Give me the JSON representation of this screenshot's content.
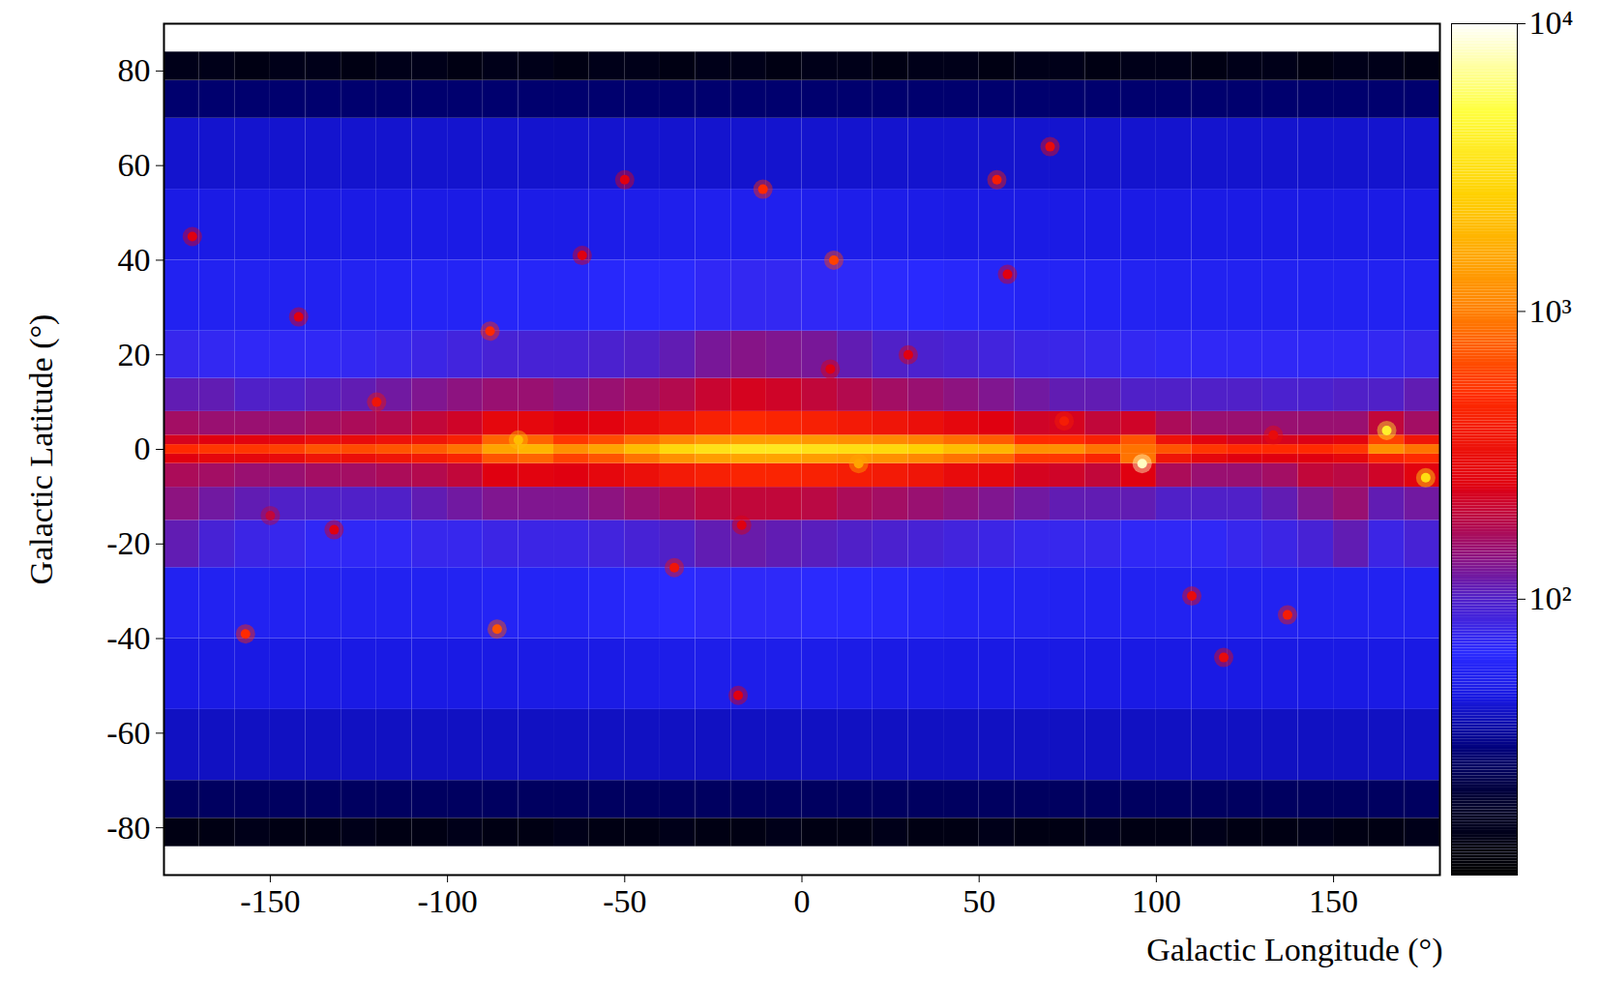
{
  "chart_data": {
    "type": "heatmap",
    "xlabel": "Galactic Longitude (°)",
    "ylabel": "Galactic Latitude (°)",
    "xlim": [
      -180,
      180
    ],
    "ylim": [
      -90,
      90
    ],
    "xticks": [
      -150,
      -100,
      -50,
      0,
      50,
      100,
      150
    ],
    "yticks": [
      -80,
      -60,
      -40,
      -20,
      0,
      20,
      40,
      60,
      80
    ],
    "x_bins": [
      -180,
      -170,
      -160,
      -150,
      -140,
      -130,
      -120,
      -110,
      -100,
      -90,
      -80,
      -70,
      -60,
      -50,
      -40,
      -30,
      -20,
      -10,
      0,
      10,
      20,
      30,
      40,
      50,
      60,
      70,
      80,
      90,
      100,
      110,
      120,
      130,
      140,
      150,
      160,
      170,
      180
    ],
    "y_bins": [
      -90,
      -84,
      -78,
      -70,
      -55,
      -40,
      -25,
      -15,
      -8,
      -3,
      -1,
      1,
      3,
      8,
      15,
      25,
      40,
      55,
      70,
      78,
      84,
      90
    ],
    "values": [
      [
        null,
        null,
        null,
        null,
        null,
        null,
        null,
        null,
        null,
        null,
        null,
        null,
        null,
        null,
        null,
        null,
        null,
        null,
        null,
        null,
        null,
        null,
        null,
        null,
        null,
        null,
        null,
        null,
        null,
        null,
        null,
        null,
        null,
        null,
        null,
        null
      ],
      [
        14,
        14,
        15,
        14,
        14,
        15,
        14,
        14,
        15,
        14,
        14,
        15,
        14,
        14,
        15,
        14,
        14,
        15,
        14,
        14,
        15,
        14,
        14,
        15,
        14,
        14,
        15,
        14,
        14,
        15,
        14,
        14,
        15,
        14,
        14,
        15
      ],
      [
        26,
        26,
        26,
        26,
        26,
        26,
        26,
        26,
        26,
        26,
        26,
        26,
        26,
        26,
        26,
        26,
        26,
        26,
        26,
        26,
        26,
        26,
        26,
        26,
        26,
        26,
        26,
        26,
        26,
        26,
        26,
        26,
        26,
        26,
        26,
        26
      ],
      [
        40,
        40,
        40,
        40,
        40,
        40,
        40,
        40,
        40,
        40,
        40,
        40,
        40,
        40,
        40,
        40,
        40,
        40,
        40,
        40,
        40,
        40,
        40,
        40,
        40,
        40,
        40,
        40,
        40,
        40,
        40,
        40,
        40,
        40,
        40,
        40
      ],
      [
        47,
        47,
        47,
        47,
        47,
        47,
        47,
        47,
        47,
        47,
        48,
        48,
        48,
        49,
        50,
        51,
        51,
        51,
        50,
        49,
        48,
        48,
        47,
        47,
        47,
        47,
        47,
        47,
        47,
        47,
        47,
        47,
        47,
        47,
        47,
        47
      ],
      [
        55,
        55,
        55,
        55,
        55,
        55,
        55,
        55,
        56,
        58,
        58,
        58,
        60,
        62,
        65,
        68,
        68,
        68,
        66,
        64,
        62,
        60,
        58,
        57,
        56,
        55,
        55,
        55,
        55,
        55,
        55,
        55,
        55,
        55,
        55,
        55
      ],
      [
        110,
        90,
        80,
        75,
        70,
        70,
        70,
        75,
        75,
        80,
        80,
        80,
        85,
        90,
        100,
        110,
        115,
        110,
        105,
        100,
        95,
        90,
        85,
        80,
        75,
        75,
        75,
        70,
        70,
        70,
        75,
        80,
        90,
        110,
        80,
        90
      ],
      [
        140,
        120,
        110,
        100,
        100,
        100,
        100,
        110,
        120,
        130,
        130,
        130,
        140,
        150,
        170,
        190,
        200,
        200,
        190,
        170,
        160,
        150,
        140,
        130,
        120,
        110,
        110,
        110,
        100,
        100,
        100,
        110,
        130,
        150,
        110,
        120
      ],
      [
        170,
        160,
        150,
        150,
        160,
        160,
        170,
        180,
        200,
        250,
        260,
        250,
        280,
        320,
        380,
        420,
        450,
        450,
        430,
        400,
        380,
        350,
        300,
        280,
        230,
        220,
        200,
        250,
        170,
        150,
        150,
        160,
        200,
        190,
        220,
        260
      ],
      [
        250,
        280,
        280,
        300,
        350,
        320,
        350,
        380,
        450,
        700,
        800,
        600,
        700,
        900,
        1200,
        1400,
        1500,
        1500,
        1400,
        1300,
        1200,
        1100,
        900,
        800,
        550,
        550,
        450,
        900,
        350,
        280,
        250,
        250,
        250,
        280,
        450,
        500
      ],
      [
        500,
        550,
        550,
        600,
        700,
        650,
        700,
        750,
        900,
        1500,
        1800,
        1200,
        1500,
        2000,
        2800,
        3200,
        3500,
        3500,
        3200,
        3000,
        2800,
        2500,
        2000,
        1800,
        1200,
        1200,
        900,
        900,
        700,
        550,
        500,
        500,
        500,
        550,
        1200,
        900
      ],
      [
        230,
        250,
        260,
        280,
        320,
        300,
        330,
        350,
        420,
        800,
        800,
        550,
        650,
        850,
        1100,
        1300,
        1400,
        1400,
        1300,
        1200,
        1100,
        1000,
        850,
        750,
        500,
        500,
        420,
        700,
        330,
        260,
        230,
        230,
        240,
        260,
        600,
        350
      ],
      [
        160,
        150,
        150,
        150,
        160,
        170,
        180,
        200,
        220,
        280,
        280,
        250,
        260,
        300,
        350,
        420,
        480,
        450,
        420,
        380,
        350,
        320,
        280,
        250,
        220,
        230,
        200,
        220,
        170,
        150,
        150,
        150,
        150,
        150,
        200,
        160
      ],
      [
        110,
        110,
        100,
        100,
        105,
        110,
        120,
        130,
        140,
        150,
        150,
        140,
        150,
        160,
        180,
        210,
        230,
        220,
        200,
        180,
        160,
        150,
        140,
        130,
        120,
        110,
        110,
        100,
        100,
        100,
        100,
        95,
        95,
        100,
        100,
        110
      ],
      [
        75,
        72,
        70,
        70,
        70,
        72,
        75,
        80,
        85,
        90,
        90,
        90,
        95,
        100,
        110,
        125,
        135,
        130,
        125,
        110,
        100,
        95,
        90,
        85,
        80,
        78,
        75,
        72,
        70,
        70,
        70,
        70,
        70,
        70,
        72,
        75
      ],
      [
        55,
        55,
        55,
        55,
        55,
        56,
        57,
        58,
        58,
        60,
        60,
        60,
        62,
        64,
        66,
        70,
        72,
        72,
        70,
        68,
        66,
        64,
        62,
        60,
        58,
        58,
        57,
        56,
        55,
        55,
        55,
        55,
        55,
        55,
        55,
        55
      ],
      [
        48,
        48,
        48,
        48,
        48,
        48,
        48,
        48,
        48,
        48,
        49,
        49,
        50,
        51,
        52,
        53,
        53,
        53,
        52,
        51,
        50,
        49,
        48,
        48,
        48,
        48,
        48,
        48,
        48,
        48,
        48,
        48,
        48,
        48,
        48,
        48
      ],
      [
        42,
        42,
        42,
        42,
        42,
        42,
        42,
        42,
        42,
        42,
        42,
        42,
        42,
        42,
        42,
        42,
        42,
        42,
        42,
        42,
        42,
        42,
        42,
        42,
        42,
        42,
        42,
        42,
        42,
        42,
        42,
        42,
        42,
        42,
        42,
        42
      ],
      [
        28,
        28,
        28,
        28,
        28,
        28,
        28,
        28,
        28,
        28,
        28,
        28,
        28,
        28,
        28,
        28,
        28,
        28,
        28,
        28,
        28,
        28,
        28,
        28,
        28,
        28,
        28,
        28,
        28,
        28,
        28,
        28,
        28,
        28,
        28,
        28
      ],
      [
        15,
        15,
        14,
        15,
        15,
        14,
        15,
        15,
        14,
        15,
        15,
        14,
        15,
        15,
        14,
        15,
        15,
        14,
        15,
        15,
        14,
        15,
        15,
        14,
        15,
        15,
        14,
        15,
        15,
        14,
        15,
        15,
        14,
        15,
        15,
        14
      ],
      [
        null,
        null,
        null,
        null,
        null,
        null,
        null,
        null,
        null,
        null,
        null,
        null,
        null,
        null,
        null,
        null,
        null,
        null,
        null,
        null,
        null,
        null,
        null,
        null,
        null,
        null,
        null,
        null,
        null,
        null,
        null,
        null,
        null,
        null,
        null,
        null
      ]
    ],
    "sources": {
      "x": [
        96,
        165,
        176,
        -80,
        16,
        -11,
        9,
        -88,
        -86,
        -157,
        137,
        55,
        70,
        -50,
        -36,
        110,
        119,
        -18,
        -120,
        74,
        30,
        8,
        -142,
        -172,
        58,
        133,
        -132,
        -150,
        -17,
        -62
      ],
      "y": [
        -3,
        4,
        -6,
        2,
        -3,
        55,
        40,
        25,
        -38,
        -39,
        -35,
        57,
        64,
        57,
        -25,
        -31,
        -44,
        -52,
        10,
        6,
        20,
        17,
        28,
        45,
        37,
        3,
        -17,
        -14,
        -16,
        41
      ],
      "values": [
        8000,
        4000,
        3000,
        2000,
        1500,
        500,
        600,
        500,
        700,
        500,
        400,
        400,
        300,
        250,
        350,
        300,
        300,
        250,
        350,
        400,
        250,
        250,
        250,
        250,
        250,
        300,
        250,
        200,
        250,
        250
      ]
    },
    "colorbar": {
      "log": true,
      "lim": [
        11,
        10000
      ],
      "ticks": [
        {
          "value": 100,
          "label": "10²"
        },
        {
          "value": 1000,
          "label": "10³"
        },
        {
          "value": 10000,
          "label": "10⁴"
        }
      ]
    }
  }
}
